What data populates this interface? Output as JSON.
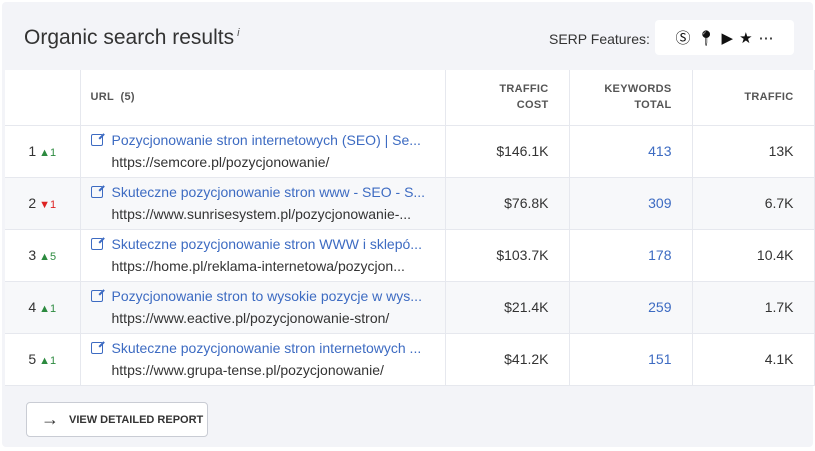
{
  "header": {
    "title": "Organic search results",
    "info": "i",
    "serp_label": "SERP Features:"
  },
  "serp_icons": [
    "dollar-badge-icon",
    "map-pin-icon",
    "youtube-icon",
    "star-icon",
    "more-icon"
  ],
  "columns": {
    "url": "URL  (5)",
    "traffic_cost": "TRAFFIC COST",
    "keywords": "KEYWORDS TOTAL",
    "traffic": "TRAFFIC"
  },
  "rows": [
    {
      "rank": "1",
      "change": "1",
      "dir": "up",
      "title": "Pozycjonowanie stron internetowych (SEO) | Se...",
      "url": "https://semcore.pl/pozycjonowanie/",
      "cost": "$146.1K",
      "keywords": "413",
      "traffic": "13K"
    },
    {
      "rank": "2",
      "change": "1",
      "dir": "down",
      "title": "Skuteczne pozycjonowanie stron www - SEO - S...",
      "url": "https://www.sunrisesystem.pl/pozycjonowanie-...",
      "cost": "$76.8K",
      "keywords": "309",
      "traffic": "6.7K"
    },
    {
      "rank": "3",
      "change": "5",
      "dir": "up",
      "title": "Skuteczne pozycjonowanie stron WWW i sklepó...",
      "url": "https://home.pl/reklama-internetowa/pozycjon...",
      "cost": "$103.7K",
      "keywords": "178",
      "traffic": "10.4K"
    },
    {
      "rank": "4",
      "change": "1",
      "dir": "up",
      "title": "Pozycjonowanie stron to wysokie pozycje w wys...",
      "url": "https://www.eactive.pl/pozycjonowanie-stron/",
      "cost": "$21.4K",
      "keywords": "259",
      "traffic": "1.7K"
    },
    {
      "rank": "5",
      "change": "1",
      "dir": "up",
      "title": "Skuteczne pozycjonowanie stron internetowych ...",
      "url": "https://www.grupa-tense.pl/pozycjonowanie/",
      "cost": "$41.2K",
      "keywords": "151",
      "traffic": "4.1K"
    }
  ],
  "button": {
    "label": "VIEW DETAILED REPORT"
  },
  "colors": {
    "link": "#3d6bc2",
    "up": "#2c8a3f",
    "down": "#dd2222"
  }
}
